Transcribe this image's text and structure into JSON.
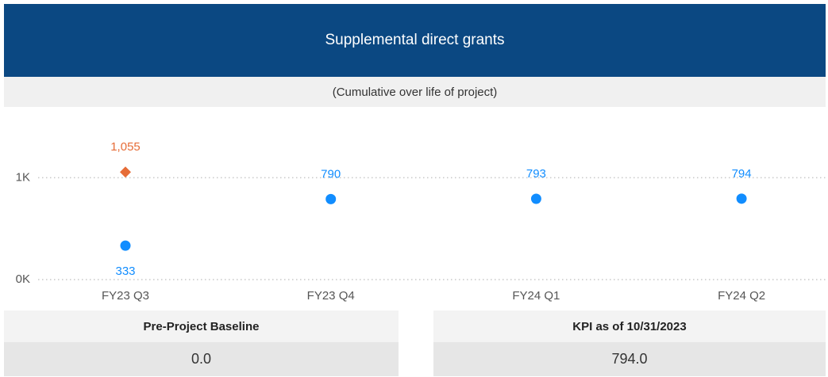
{
  "header": {
    "title": "Supplemental direct grants",
    "subtitle": "(Cumulative over life of project)"
  },
  "chart_data": {
    "type": "scatter",
    "categories": [
      "FY23 Q3",
      "FY23 Q4",
      "FY24 Q1",
      "FY24 Q2"
    ],
    "series": [
      {
        "color": "#118dff",
        "marker": "circle",
        "values": [
          333,
          790,
          793,
          794
        ]
      },
      {
        "color": "#e66c37",
        "marker": "diamond",
        "values": [
          1055,
          null,
          null,
          null
        ],
        "value_labels": [
          "1,055",
          null,
          null,
          null
        ]
      }
    ],
    "ylim": [
      0,
      1500
    ],
    "yticks": [
      {
        "value": 0,
        "label": "0K"
      },
      {
        "value": 1000,
        "label": "1K"
      }
    ],
    "grid": true
  },
  "cards": [
    {
      "label": "Pre-Project Baseline",
      "value": "0.0"
    },
    {
      "label": "KPI as of 10/31/2023",
      "value": "794.0"
    }
  ]
}
